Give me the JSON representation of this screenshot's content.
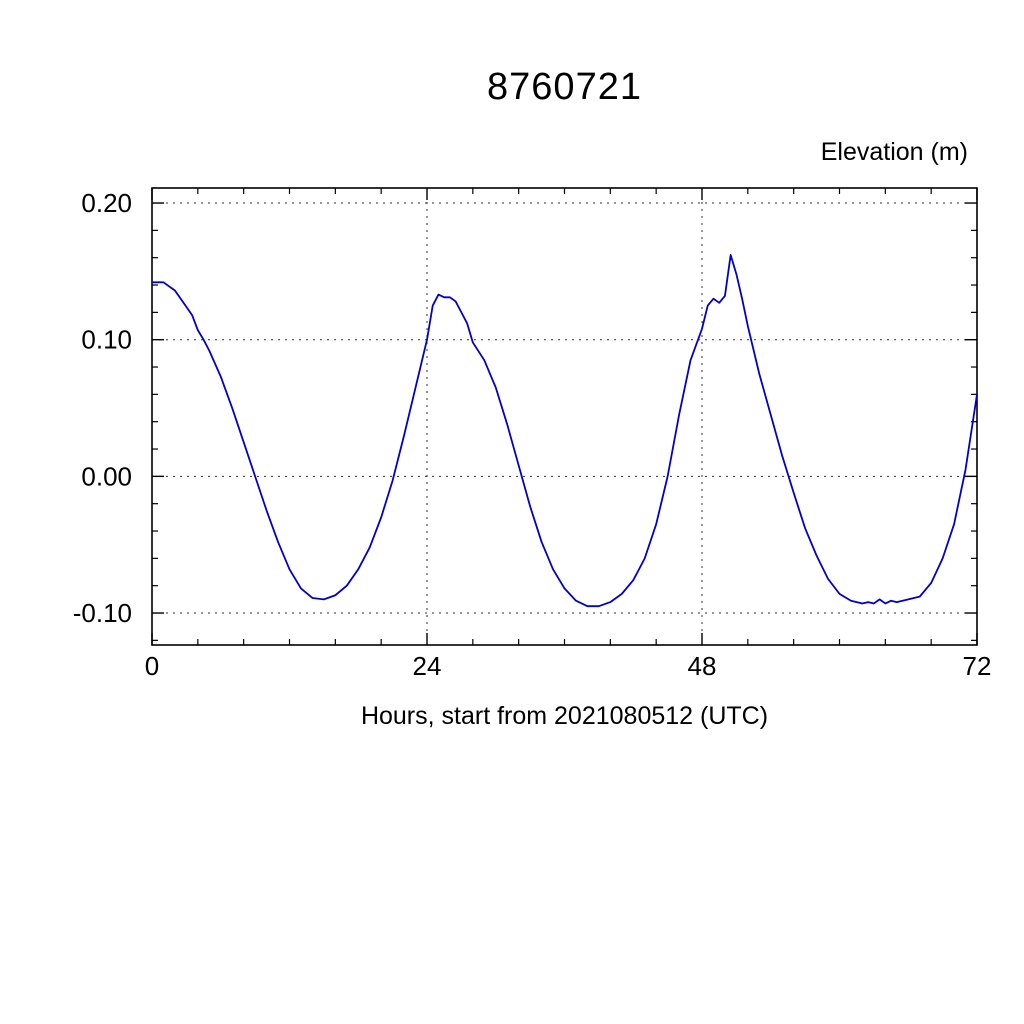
{
  "chart_data": {
    "type": "line",
    "title": "8760721",
    "right_axis_label": "Elevation (m)",
    "xlabel": "Hours, start from 2021080512 (UTC)",
    "ylabel": "Elevation (m)",
    "xlim": [
      0,
      72
    ],
    "ylim": [
      -0.1234,
      0.211
    ],
    "x_major_ticks": [
      0,
      24,
      48,
      72
    ],
    "x_tick_labels": [
      "0",
      "24",
      "48",
      "72"
    ],
    "x_minor_step": 4,
    "y_major_ticks": [
      -0.1,
      0.0,
      0.1,
      0.2
    ],
    "y_tick_labels": [
      "-0.10",
      "0.00",
      "0.10",
      "0.20"
    ],
    "y_minor_step": 0.02,
    "grid": "dotted-at-major-ticks",
    "legend_position": "none",
    "line_color": "#0000cd",
    "frame_color": "#000000",
    "series": [
      {
        "name": "elevation",
        "x": [
          0,
          1,
          2,
          3,
          3.5,
          4,
          4.5,
          5,
          6,
          7,
          8,
          9,
          10,
          11,
          12,
          13,
          14,
          15,
          16,
          17,
          18,
          19,
          20,
          21,
          22,
          23,
          24,
          24.5,
          25,
          25.5,
          26,
          26.5,
          27,
          27.5,
          28,
          29,
          30,
          31,
          32,
          33,
          34,
          35,
          36,
          37,
          38,
          39,
          40,
          41,
          42,
          43,
          44,
          45,
          46,
          47,
          48,
          48.5,
          49,
          49.5,
          50,
          50.5,
          51,
          51.5,
          52,
          53,
          54,
          55,
          56,
          57,
          58,
          59,
          60,
          61,
          62,
          62.5,
          63,
          63.5,
          64,
          64.5,
          65,
          66,
          67,
          68,
          69,
          70,
          71,
          72
        ],
        "y": [
          0.142,
          0.142,
          0.136,
          0.124,
          0.118,
          0.107,
          0.1,
          0.092,
          0.073,
          0.05,
          0.025,
          0.0,
          -0.025,
          -0.048,
          -0.068,
          -0.082,
          -0.089,
          -0.09,
          -0.087,
          -0.08,
          -0.068,
          -0.052,
          -0.03,
          -0.003,
          0.03,
          0.065,
          0.1,
          0.125,
          0.133,
          0.131,
          0.131,
          0.128,
          0.12,
          0.112,
          0.098,
          0.085,
          0.065,
          0.038,
          0.008,
          -0.022,
          -0.048,
          -0.068,
          -0.082,
          -0.091,
          -0.095,
          -0.095,
          -0.092,
          -0.086,
          -0.076,
          -0.06,
          -0.035,
          0.0,
          0.045,
          0.085,
          0.108,
          0.125,
          0.13,
          0.127,
          0.132,
          0.162,
          0.148,
          0.13,
          0.11,
          0.075,
          0.045,
          0.015,
          -0.012,
          -0.038,
          -0.058,
          -0.075,
          -0.086,
          -0.091,
          -0.093,
          -0.092,
          -0.093,
          -0.09,
          -0.093,
          -0.091,
          -0.092,
          -0.09,
          -0.088,
          -0.078,
          -0.06,
          -0.035,
          0.005,
          0.06
        ]
      }
    ]
  }
}
